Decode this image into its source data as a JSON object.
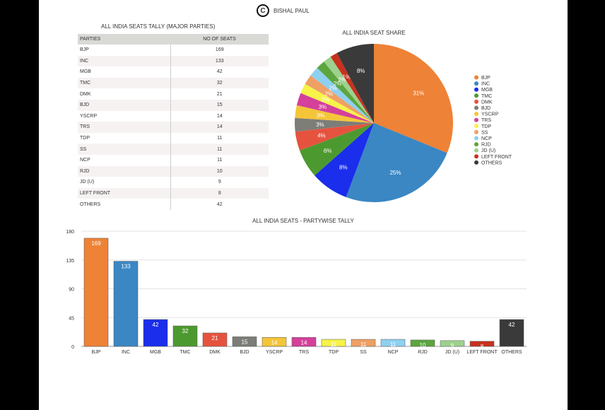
{
  "credit": {
    "symbol": "C",
    "name": "BISHAL PAUL"
  },
  "table": {
    "title": "ALL INDIA SEATS TALLY (MAJOR PARTIES)",
    "headers": [
      "PARTIES",
      "NO OF SEATS"
    ]
  },
  "chart_data": [
    {
      "type": "table",
      "title": "ALL INDIA SEATS TALLY (MAJOR PARTIES)"
    },
    {
      "type": "pie",
      "title": "ALL INDIA SEAT SHARE",
      "legend": "right",
      "labels": [
        "BJP",
        "INC",
        "MGB",
        "TMC",
        "DMK",
        "BJD",
        "YSCRP",
        "TRS",
        "TDP",
        "SS",
        "NCP",
        "RJD",
        "JD (U)",
        "LEFT FRONT",
        "OTHERS"
      ],
      "values": [
        169,
        133,
        42,
        32,
        21,
        15,
        14,
        14,
        11,
        11,
        11,
        10,
        9,
        8,
        42
      ],
      "data_labels": [
        "31%",
        "25%",
        "8%",
        "6%",
        "4%",
        "3%",
        "3%",
        "3%",
        "2%",
        "2%",
        "2%",
        "2%",
        "2%",
        "1%",
        "8%"
      ]
    },
    {
      "type": "bar",
      "title": "ALL INDIA SEATS - PARTYWISE TALLY",
      "categories": [
        "BJP",
        "INC",
        "MGB",
        "TMC",
        "DMK",
        "BJD",
        "YSCRP",
        "TRS",
        "TDP",
        "SS",
        "NCP",
        "RJD",
        "JD (U)",
        "LEFT FRONT",
        "OTHERS"
      ],
      "values": [
        169,
        133,
        42,
        32,
        21,
        15,
        14,
        14,
        11,
        11,
        11,
        10,
        9,
        8,
        42
      ],
      "yticks": [
        "0",
        "45",
        "90",
        "135",
        "180"
      ],
      "ylim": [
        0,
        180
      ],
      "grid": true
    }
  ],
  "colors": [
    "#EE8236",
    "#3A87C4",
    "#1A2EEB",
    "#4C9A2F",
    "#E5533F",
    "#7D7D78",
    "#F4C539",
    "#D4409A",
    "#F7F34A",
    "#EFA064",
    "#8ED0F0",
    "#5CA53F",
    "#9DD18D",
    "#C7321F",
    "#3A3A3A"
  ]
}
